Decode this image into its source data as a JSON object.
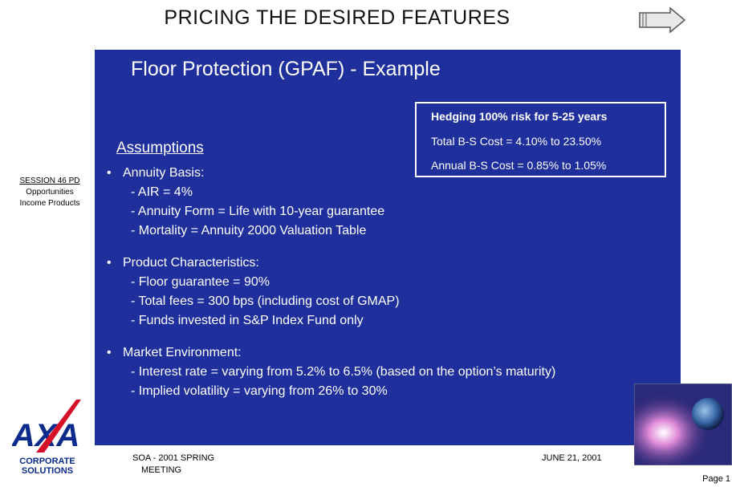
{
  "header": {
    "title": "PRICING THE DESIRED FEATURES"
  },
  "slide": {
    "subtitle": "Floor Protection (GPAF) - Example",
    "box": [
      "Hedging 100% risk for 5-25 years",
      "Total B-S Cost = 4.10% to 23.50%",
      "Annual B-S Cost = 0.85% to 1.05%"
    ],
    "heading": "Assumptions",
    "bullets": [
      {
        "label": "Annuity Basis:",
        "items": [
          "- AIR = 4%",
          "- Annuity Form = Life with 10-year guarantee",
          "- Mortality = Annuity 2000 Valuation Table"
        ]
      },
      {
        "label": "Product Characteristics:",
        "items": [
          "- Floor guarantee = 90%",
          "- Total fees  = 300 bps (including cost of GMAP)",
          "- Funds invested in S&P Index Fund only"
        ]
      },
      {
        "label": "Market Environment:",
        "items": [
          "- Interest rate = varying from 5.2% to 6.5% (based on the option’s maturity)",
          "- Implied volatility = varying from 26% to 30%"
        ]
      }
    ]
  },
  "sidebar": {
    "session": "SESSION 46 PD",
    "lines": [
      "Opportunities",
      "Income Products"
    ]
  },
  "logo": {
    "mark": "AXA",
    "lines": [
      "CORPORATE",
      "SOLUTIONS"
    ]
  },
  "footer": {
    "event": [
      "SOA - 2001 SPRING",
      "MEETING"
    ],
    "date": "JUNE 21, 2001",
    "page": "Page 1"
  }
}
